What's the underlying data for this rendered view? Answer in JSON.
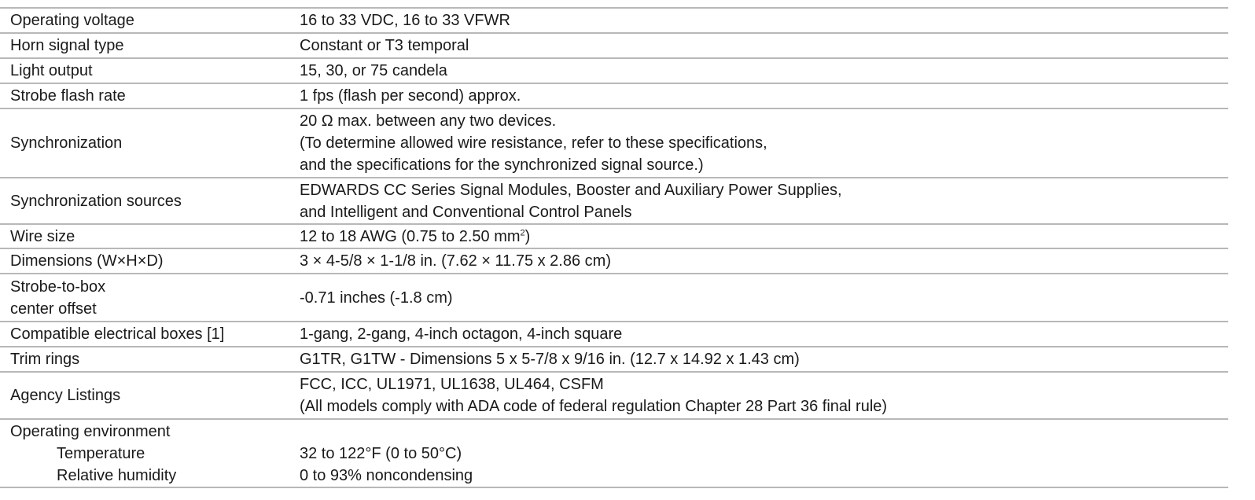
{
  "rows": [
    {
      "label": "Operating voltage",
      "value": [
        "16 to 33 VDC, 16 to 33 VFWR"
      ]
    },
    {
      "label": "Horn signal type",
      "value": [
        "Constant or T3 temporal"
      ]
    },
    {
      "label": "Light output",
      "value": [
        "15, 30, or 75 candela"
      ]
    },
    {
      "label": "Strobe flash rate",
      "value": [
        "1 fps (flash per second) approx."
      ]
    },
    {
      "label": "Synchronization",
      "value": [
        "20 Ω max. between any two devices.",
        "(To determine allowed wire resistance, refer to these specifications,",
        "and the specifications for the synchronized signal source.)"
      ]
    },
    {
      "label": "Synchronization sources",
      "value": [
        "EDWARDS CC Series Signal Modules, Booster and Auxiliary Power Supplies,",
        "and Intelligent and Conventional Control Panels"
      ]
    },
    {
      "label": "Wire size",
      "value_main": "12 to 18 AWG (0.75 to 2.50 mm",
      "value_sup": "2",
      "value_tail": ")"
    },
    {
      "label": "Dimensions (W×H×D)",
      "value": [
        "3 × 4-5/8 × 1-1/8 in. (7.62 × 11.75 x 2.86 cm)"
      ]
    },
    {
      "label_lines": [
        "Strobe-to-box",
        "center offset"
      ],
      "value": [
        "-0.71 inches (-1.8 cm)"
      ]
    },
    {
      "label": "Compatible electrical boxes [1]",
      "value": [
        "1-gang, 2-gang, 4-inch octagon, 4-inch square"
      ]
    },
    {
      "label": "Trim rings",
      "value": [
        "G1TR, G1TW - Dimensions 5 x 5-7/8 x 9/16 in. (12.7 x 14.92 x 1.43 cm)"
      ]
    },
    {
      "label": "Agency Listings",
      "value": [
        "FCC, ICC, UL1971, UL1638, UL464, CSFM",
        "(All models comply with ADA code of federal regulation Chapter 28 Part 36 final rule)"
      ]
    },
    {
      "label_lines": [
        "Operating environment",
        "Temperature",
        "Relative humidity"
      ],
      "value": [
        "",
        "32 to 122°F (0 to 50°C)",
        "0 to 93% noncondensing"
      ]
    }
  ]
}
